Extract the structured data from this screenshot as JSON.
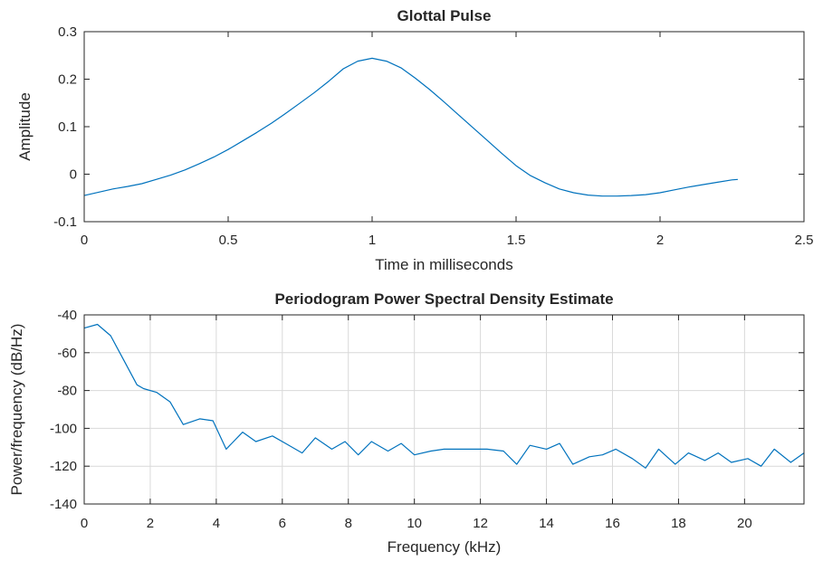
{
  "colors": {
    "line": "#0072bd",
    "axis": "#262626",
    "grid": "#d9d9d9",
    "background": "#ffffff"
  },
  "chart_data": [
    {
      "type": "line",
      "title": "Glottal Pulse",
      "xlabel": "Time in milliseconds",
      "ylabel": "Amplitude",
      "xlim": [
        0,
        2.5
      ],
      "ylim": [
        -0.1,
        0.3
      ],
      "grid": false,
      "x_ticks": [
        0,
        0.5,
        1,
        1.5,
        2,
        2.5
      ],
      "x_tick_labels": [
        "0",
        "0.5",
        "1",
        "1.5",
        "2",
        "2.5"
      ],
      "y_ticks": [
        -0.1,
        0,
        0.1,
        0.2,
        0.3
      ],
      "y_tick_labels": [
        "-0.1",
        "0",
        "0.1",
        "0.2",
        "0.3"
      ],
      "series": [
        {
          "x": [
            0,
            0.05,
            0.1,
            0.15,
            0.2,
            0.25,
            0.3,
            0.35,
            0.4,
            0.45,
            0.5,
            0.55,
            0.6,
            0.65,
            0.7,
            0.75,
            0.8,
            0.85,
            0.9,
            0.95,
            1.0,
            1.05,
            1.1,
            1.15,
            1.2,
            1.25,
            1.3,
            1.35,
            1.4,
            1.45,
            1.5,
            1.55,
            1.6,
            1.65,
            1.7,
            1.75,
            1.8,
            1.85,
            1.9,
            1.95,
            2.0,
            2.05,
            2.1,
            2.15,
            2.2,
            2.25,
            2.27
          ],
          "y": [
            -0.045,
            -0.038,
            -0.031,
            -0.026,
            -0.02,
            -0.011,
            -0.002,
            0.009,
            0.022,
            0.036,
            0.052,
            0.07,
            0.088,
            0.107,
            0.128,
            0.15,
            0.172,
            0.196,
            0.222,
            0.238,
            0.244,
            0.238,
            0.224,
            0.202,
            0.178,
            0.152,
            0.125,
            0.098,
            0.071,
            0.044,
            0.018,
            -0.003,
            -0.018,
            -0.031,
            -0.039,
            -0.044,
            -0.046,
            -0.046,
            -0.045,
            -0.043,
            -0.039,
            -0.033,
            -0.027,
            -0.022,
            -0.017,
            -0.012,
            -0.011
          ]
        }
      ]
    },
    {
      "type": "line",
      "title": "Periodogram Power Spectral Density Estimate",
      "xlabel": "Frequency (kHz)",
      "ylabel": "Power/frequency (dB/Hz)",
      "xlim": [
        0,
        21.8
      ],
      "ylim": [
        -140,
        -40
      ],
      "grid": true,
      "x_ticks": [
        0,
        2,
        4,
        6,
        8,
        10,
        12,
        14,
        16,
        18,
        20
      ],
      "x_tick_labels": [
        "0",
        "2",
        "4",
        "6",
        "8",
        "10",
        "12",
        "14",
        "16",
        "18",
        "20"
      ],
      "y_ticks": [
        -140,
        -120,
        -100,
        -80,
        -60,
        -40
      ],
      "y_tick_labels": [
        "-140",
        "-120",
        "-100",
        "-80",
        "-60",
        "-40"
      ],
      "series": [
        {
          "x": [
            0,
            0.4,
            0.8,
            1.2,
            1.6,
            1.8,
            2.2,
            2.6,
            3.0,
            3.5,
            3.9,
            4.3,
            4.8,
            5.2,
            5.7,
            6.1,
            6.6,
            7.0,
            7.5,
            7.9,
            8.3,
            8.7,
            9.2,
            9.6,
            10.0,
            10.5,
            10.9,
            11.4,
            11.8,
            12.2,
            12.7,
            13.1,
            13.5,
            14.0,
            14.4,
            14.8,
            15.3,
            15.7,
            16.1,
            16.6,
            17.0,
            17.4,
            17.9,
            18.3,
            18.8,
            19.2,
            19.6,
            20.1,
            20.5,
            20.9,
            21.4,
            21.8
          ],
          "y": [
            -47,
            -45,
            -51,
            -64,
            -77,
            -79,
            -81,
            -86,
            -98,
            -95,
            -96,
            -111,
            -102,
            -107,
            -104,
            -108,
            -113,
            -105,
            -111,
            -107,
            -114,
            -107,
            -112,
            -108,
            -114,
            -112,
            -111,
            -111,
            -111,
            -111,
            -112,
            -119,
            -109,
            -111,
            -108,
            -119,
            -115,
            -114,
            -111,
            -116,
            -121,
            -111,
            -119,
            -113,
            -117,
            -113,
            -118,
            -116,
            -120,
            -111,
            -118,
            -113
          ]
        }
      ]
    }
  ]
}
